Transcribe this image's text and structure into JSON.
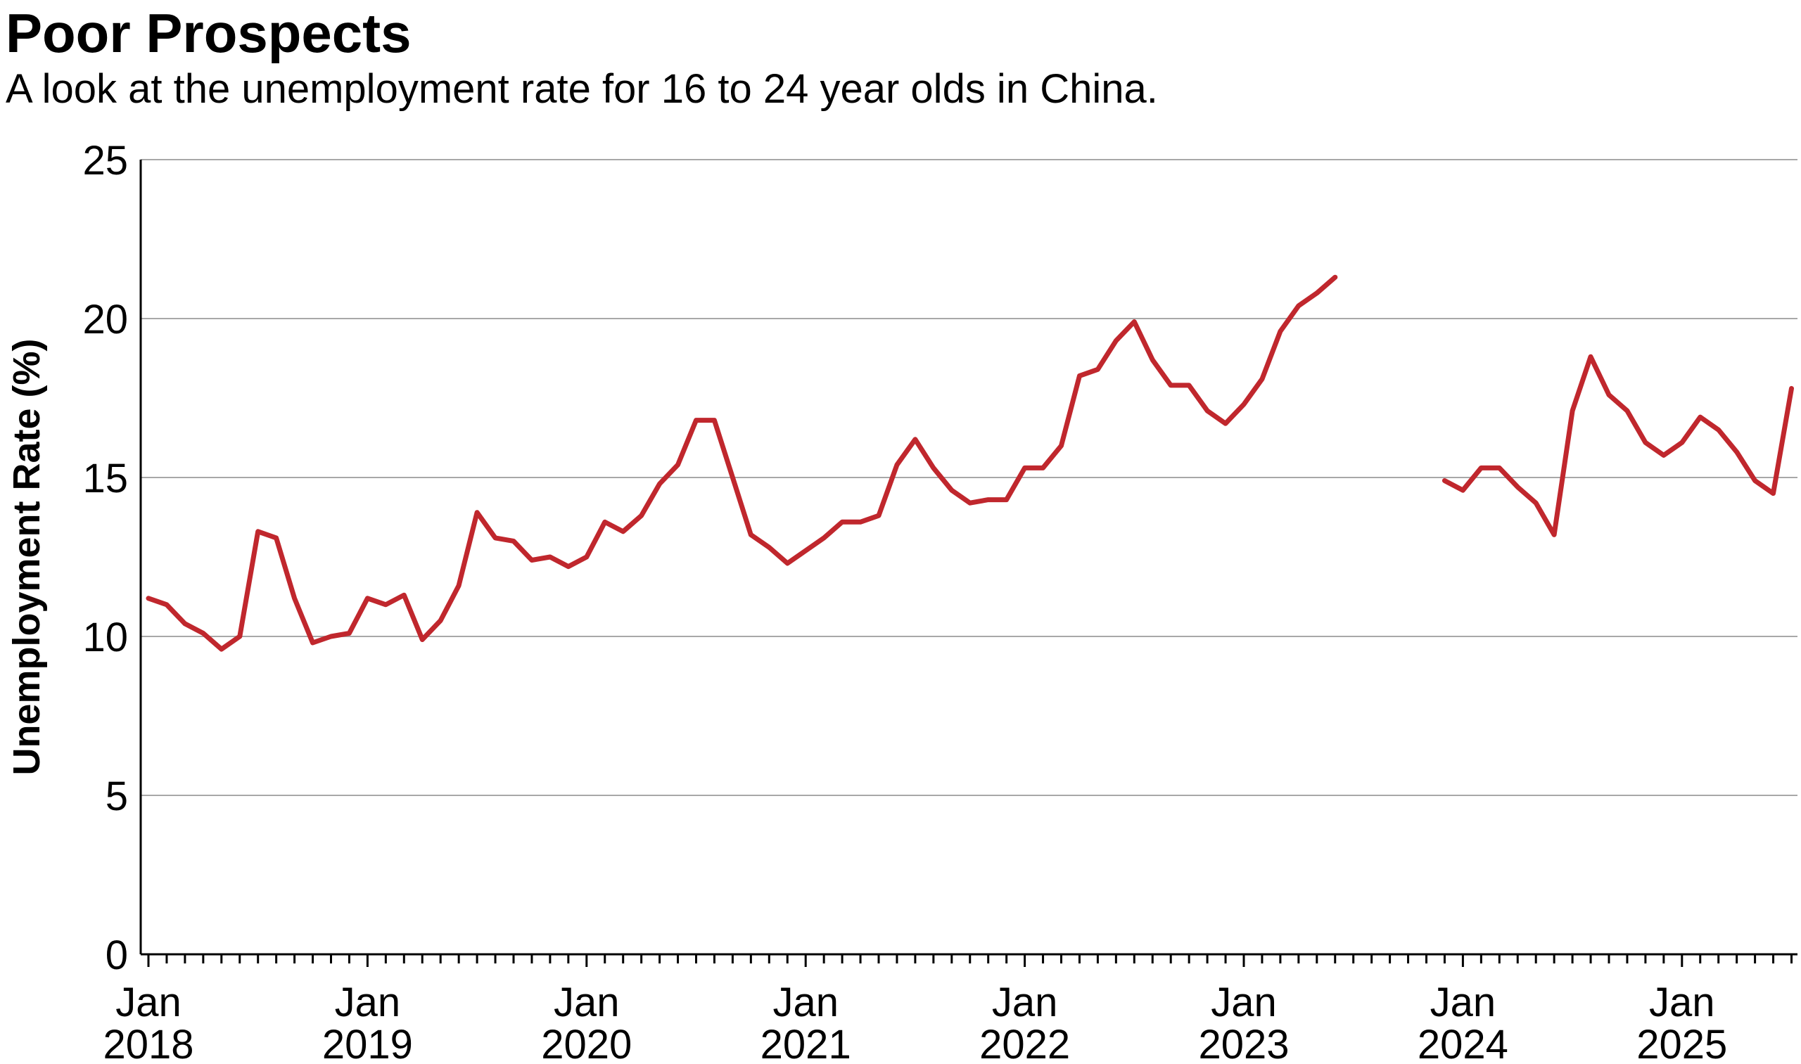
{
  "chart_data": {
    "type": "line",
    "title": "Poor Prospects",
    "subtitle": "A look at the unemployment rate for 16 to 24 year olds in China.",
    "ylabel": "Unemployment Rate (%)",
    "xlabel": "",
    "ylim": [
      0,
      25
    ],
    "yticks": [
      "0",
      "5",
      "10",
      "15",
      "20",
      "25"
    ],
    "xticks": [
      {
        "month": "Jan",
        "year": "2018",
        "date": "2018-01"
      },
      {
        "month": "Jan",
        "year": "2019",
        "date": "2019-01"
      },
      {
        "month": "Jan",
        "year": "2020",
        "date": "2020-01"
      },
      {
        "month": "Jan",
        "year": "2021",
        "date": "2021-01"
      },
      {
        "month": "Jan",
        "year": "2022",
        "date": "2022-01"
      },
      {
        "month": "Jan",
        "year": "2023",
        "date": "2023-01"
      },
      {
        "month": "Jan",
        "year": "2024",
        "date": "2024-01"
      },
      {
        "month": "Jan",
        "year": "2025",
        "date": "2025-01"
      }
    ],
    "xlim": [
      "2018-01",
      "2025-08"
    ],
    "grid": "horizontal",
    "line_color": "#c0272d",
    "series": [
      {
        "points": [
          [
            "2018-01",
            11.2
          ],
          [
            "2018-02",
            11.0
          ],
          [
            "2018-03",
            10.4
          ],
          [
            "2018-04",
            10.1
          ],
          [
            "2018-05",
            9.6
          ],
          [
            "2018-06",
            10.0
          ],
          [
            "2018-07",
            13.3
          ],
          [
            "2018-08",
            13.1
          ],
          [
            "2018-09",
            11.2
          ],
          [
            "2018-10",
            9.8
          ],
          [
            "2018-11",
            10.0
          ],
          [
            "2018-12",
            10.1
          ],
          [
            "2019-01",
            11.2
          ],
          [
            "2019-02",
            11.0
          ],
          [
            "2019-03",
            11.3
          ],
          [
            "2019-04",
            9.9
          ],
          [
            "2019-05",
            10.5
          ],
          [
            "2019-06",
            11.6
          ],
          [
            "2019-07",
            13.9
          ],
          [
            "2019-08",
            13.1
          ],
          [
            "2019-09",
            13.0
          ],
          [
            "2019-10",
            12.4
          ],
          [
            "2019-11",
            12.5
          ],
          [
            "2019-12",
            12.2
          ],
          [
            "2020-01",
            12.5
          ],
          [
            "2020-02",
            13.6
          ],
          [
            "2020-03",
            13.3
          ],
          [
            "2020-04",
            13.8
          ],
          [
            "2020-05",
            14.8
          ],
          [
            "2020-06",
            15.4
          ],
          [
            "2020-07",
            16.8
          ],
          [
            "2020-08",
            16.8
          ],
          [
            "2020-09",
            15.0
          ],
          [
            "2020-10",
            13.2
          ],
          [
            "2020-11",
            12.8
          ],
          [
            "2020-12",
            12.3
          ],
          [
            "2021-01",
            12.7
          ],
          [
            "2021-02",
            13.1
          ],
          [
            "2021-03",
            13.6
          ],
          [
            "2021-04",
            13.6
          ],
          [
            "2021-05",
            13.8
          ],
          [
            "2021-06",
            15.4
          ],
          [
            "2021-07",
            16.2
          ],
          [
            "2021-08",
            15.3
          ],
          [
            "2021-09",
            14.6
          ],
          [
            "2021-10",
            14.2
          ],
          [
            "2021-11",
            14.3
          ],
          [
            "2021-12",
            14.3
          ],
          [
            "2022-01",
            15.3
          ],
          [
            "2022-02",
            15.3
          ],
          [
            "2022-03",
            16.0
          ],
          [
            "2022-04",
            18.2
          ],
          [
            "2022-05",
            18.4
          ],
          [
            "2022-06",
            19.3
          ],
          [
            "2022-07",
            19.9
          ],
          [
            "2022-08",
            18.7
          ],
          [
            "2022-09",
            17.9
          ],
          [
            "2022-10",
            17.9
          ],
          [
            "2022-11",
            17.1
          ],
          [
            "2022-12",
            16.7
          ],
          [
            "2023-01",
            17.3
          ],
          [
            "2023-02",
            18.1
          ],
          [
            "2023-03",
            19.6
          ],
          [
            "2023-04",
            20.4
          ],
          [
            "2023-05",
            20.8
          ],
          [
            "2023-06",
            21.3
          ]
        ]
      },
      {
        "points": [
          [
            "2023-12",
            14.9
          ],
          [
            "2024-01",
            14.6
          ],
          [
            "2024-02",
            15.3
          ],
          [
            "2024-03",
            15.3
          ],
          [
            "2024-04",
            14.7
          ],
          [
            "2024-05",
            14.2
          ],
          [
            "2024-06",
            13.2
          ],
          [
            "2024-07",
            17.1
          ],
          [
            "2024-08",
            18.8
          ],
          [
            "2024-09",
            17.6
          ],
          [
            "2024-10",
            17.1
          ],
          [
            "2024-11",
            16.1
          ],
          [
            "2024-12",
            15.7
          ],
          [
            "2025-01",
            16.1
          ],
          [
            "2025-02",
            16.9
          ],
          [
            "2025-03",
            16.5
          ],
          [
            "2025-04",
            15.8
          ],
          [
            "2025-05",
            14.9
          ],
          [
            "2025-06",
            14.5
          ],
          [
            "2025-07",
            17.8
          ]
        ]
      }
    ]
  }
}
